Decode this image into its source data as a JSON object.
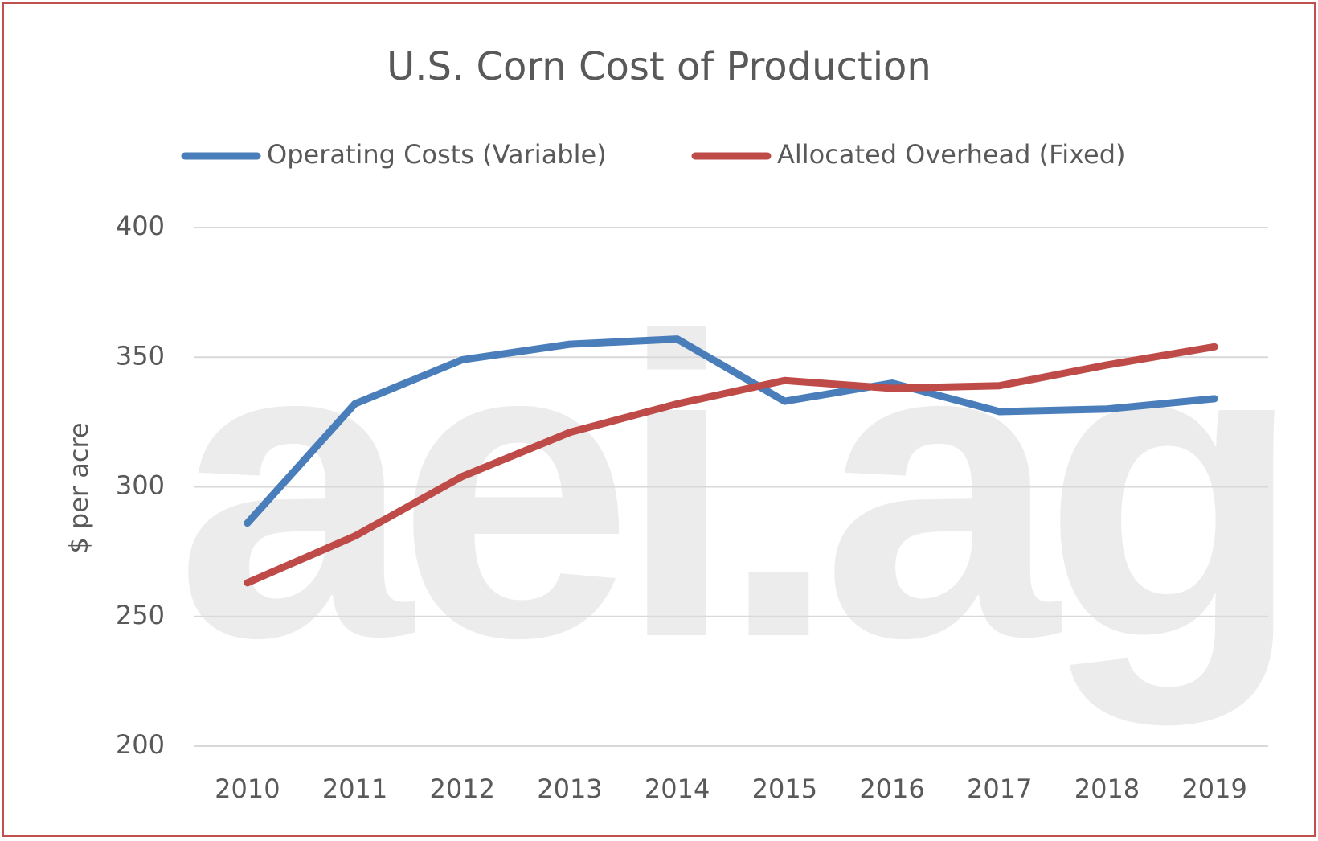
{
  "chart_data": {
    "type": "line",
    "title": "U.S. Corn Cost of Production",
    "ylabel": "$ per acre",
    "watermark": "aei.ag",
    "categories": [
      "2010",
      "2011",
      "2012",
      "2013",
      "2014",
      "2015",
      "2016",
      "2017",
      "2018",
      "2019"
    ],
    "series": [
      {
        "name": "Operating Costs (Variable)",
        "color": "#4a7ebb",
        "values": [
          286,
          332,
          349,
          355,
          357,
          333,
          340,
          329,
          330,
          334
        ]
      },
      {
        "name": "Allocated Overhead (Fixed)",
        "color": "#be4b48",
        "values": [
          263,
          281,
          304,
          321,
          332,
          341,
          338,
          339,
          347,
          354
        ]
      }
    ],
    "ylim": [
      200,
      400
    ],
    "yticks": [
      200,
      250,
      300,
      350,
      400
    ],
    "grid": true
  }
}
